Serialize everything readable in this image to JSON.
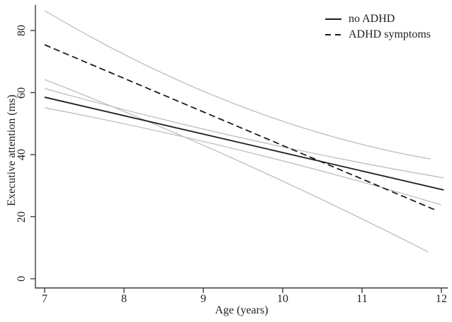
{
  "figure": {
    "x_axis_title": "Age (years)",
    "y_axis_title": "Executive attention (ms)"
  },
  "chart_data": {
    "type": "line",
    "title": "",
    "xlabel": "Age (years)",
    "ylabel": "Executive attention (ms)",
    "xlim": [
      6.88,
      12.2
    ],
    "ylim": [
      0,
      88
    ],
    "x_ticks": [
      7,
      8,
      9,
      10,
      11,
      12
    ],
    "y_ticks": [
      0,
      20,
      40,
      60,
      80
    ],
    "grid": false,
    "legend_position": "top-right",
    "colors": {
      "fit_line": "#1c1c1c",
      "ci_line": "#bdbdbd",
      "axis": "#3d3d3d",
      "text": "#1f1f1f",
      "background": "#ffffff"
    },
    "legend": [
      {
        "label": "no ADHD",
        "style": "solid"
      },
      {
        "label": "ADHD symptoms",
        "style": "dashed"
      }
    ],
    "series": [
      {
        "name": "no ADHD fit",
        "role": "fit",
        "style": "solid",
        "points": [
          [
            7,
            58.5
          ],
          [
            12.03,
            28.6
          ]
        ]
      },
      {
        "name": "no ADHD CI upper",
        "role": "ci",
        "style": "ci",
        "points": [
          [
            7,
            61.3
          ],
          [
            12.03,
            32.5
          ]
        ],
        "mid_value": 45.2
      },
      {
        "name": "no ADHD CI lower",
        "role": "ci",
        "style": "ci",
        "points": [
          [
            7,
            55.1
          ],
          [
            12.0,
            23.8
          ]
        ],
        "mid_value": 41.2
      },
      {
        "name": "ADHD symptoms fit",
        "role": "fit",
        "style": "dashed",
        "points": [
          [
            7,
            75.4
          ],
          [
            11.91,
            22.3
          ]
        ]
      },
      {
        "name": "ADHD symptoms CI upper",
        "role": "ci",
        "style": "ci",
        "points": [
          [
            7,
            86.4
          ],
          [
            11.86,
            38.6
          ]
        ],
        "mid_value": 56.0
      },
      {
        "name": "ADHD symptoms CI lower",
        "role": "ci",
        "style": "ci",
        "points": [
          [
            7,
            64.2
          ],
          [
            11.83,
            8.7
          ]
        ],
        "mid_value": 38.3
      }
    ]
  }
}
